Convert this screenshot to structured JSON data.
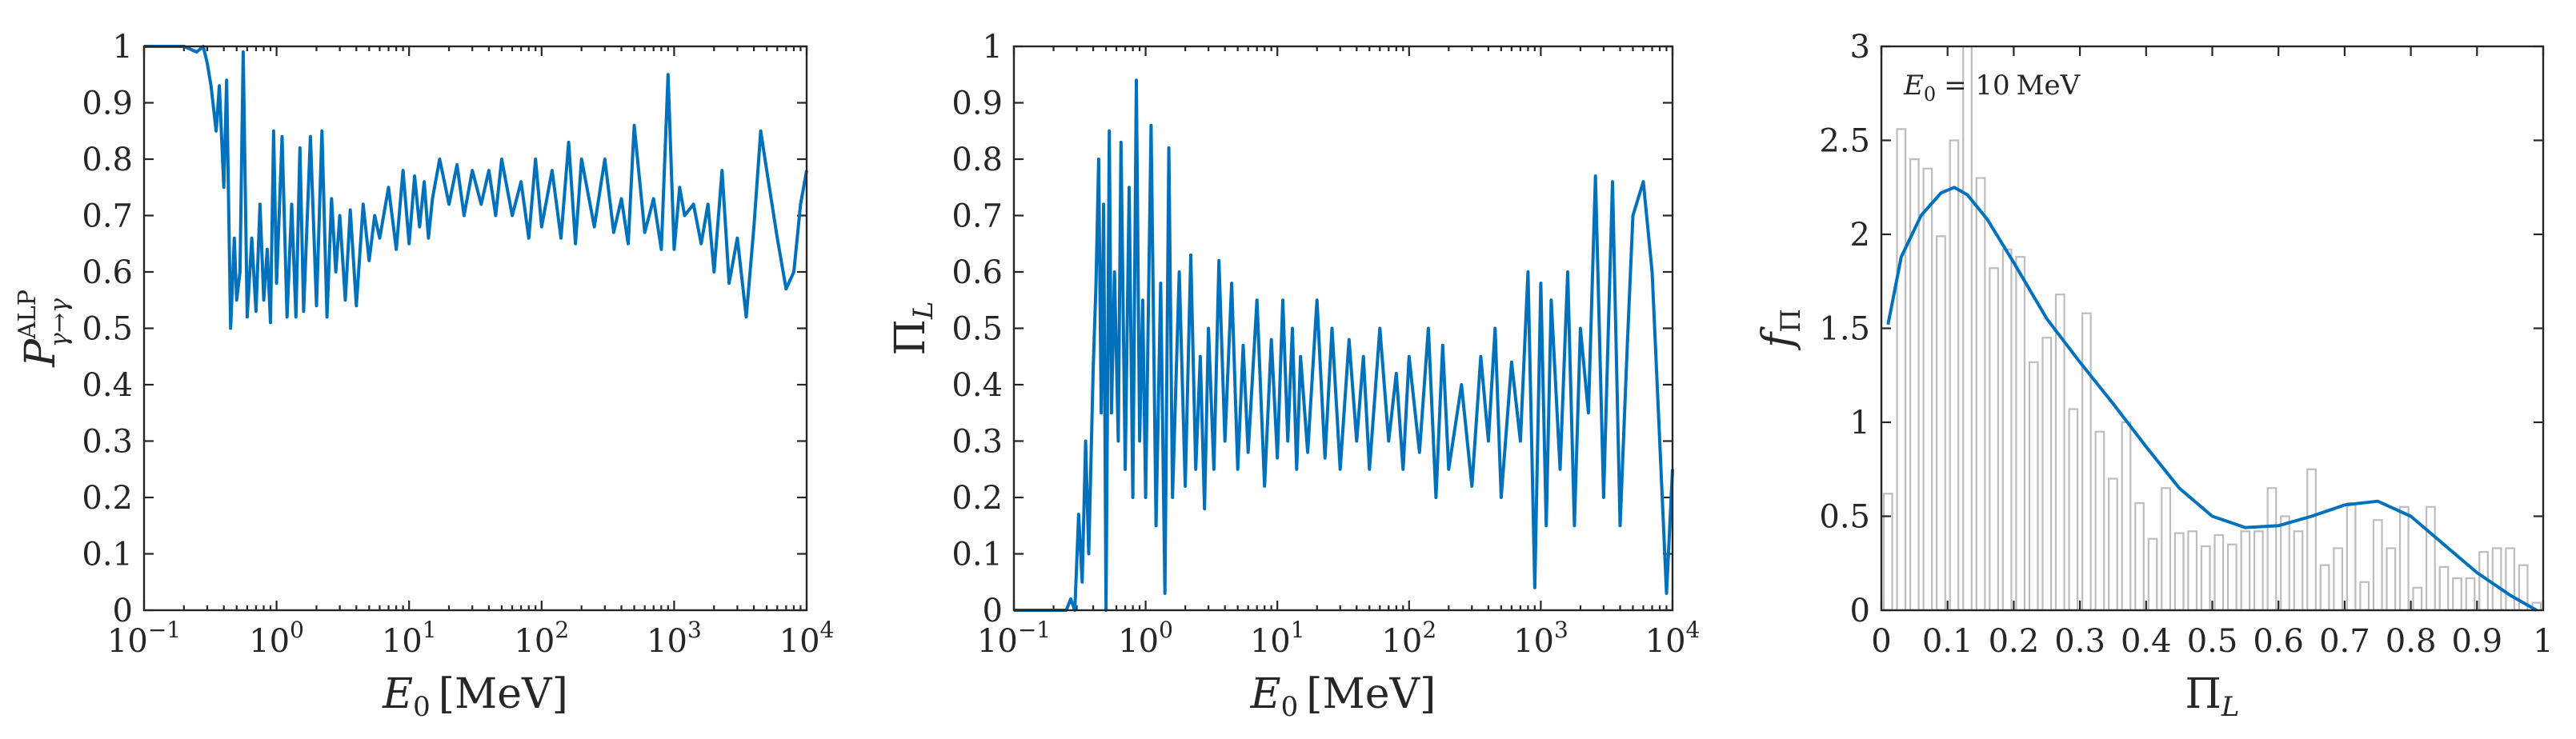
{
  "chart_data": [
    {
      "type": "line",
      "panel": "left",
      "xlabel_var": "E",
      "xlabel_sub": "0",
      "xlabel_unit": "[MeV]",
      "ylabel_main": "P",
      "ylabel_sup": "ALP",
      "ylabel_sub": "γ→γ",
      "xscale": "log",
      "xlim": [
        0.1,
        10000
      ],
      "ylim": [
        0,
        1
      ],
      "x_ticks": [
        0.1,
        1,
        10,
        100,
        1000,
        10000
      ],
      "x_tick_base": "10",
      "x_tick_exp": [
        "−1",
        "0",
        "1",
        "2",
        "3",
        "4"
      ],
      "y_ticks": [
        0,
        0.1,
        0.2,
        0.3,
        0.4,
        0.5,
        0.6,
        0.7,
        0.8,
        0.9,
        1
      ],
      "y_tick_labels": [
        "0",
        "0.1",
        "0.2",
        "0.3",
        "0.4",
        "0.5",
        "0.6",
        "0.7",
        "0.8",
        "0.9",
        "1"
      ],
      "series": [
        {
          "name": "P_ALP",
          "color": "#0072BD",
          "x": [
            0.1,
            0.15,
            0.2,
            0.25,
            0.28,
            0.3,
            0.32,
            0.35,
            0.37,
            0.4,
            0.42,
            0.45,
            0.48,
            0.5,
            0.53,
            0.56,
            0.6,
            0.65,
            0.7,
            0.75,
            0.8,
            0.85,
            0.9,
            0.95,
            1.0,
            1.1,
            1.2,
            1.3,
            1.4,
            1.5,
            1.6,
            1.8,
            2.0,
            2.2,
            2.4,
            2.6,
            2.8,
            3.0,
            3.3,
            3.6,
            4.0,
            4.5,
            5.0,
            5.5,
            6.0,
            7.0,
            8.0,
            9.0,
            10,
            11,
            12,
            13,
            14,
            15,
            17,
            20,
            23,
            26,
            30,
            35,
            40,
            45,
            50,
            60,
            70,
            80,
            90,
            100,
            120,
            140,
            160,
            180,
            200,
            250,
            300,
            350,
            400,
            450,
            500,
            600,
            700,
            800,
            900,
            1000,
            1100,
            1200,
            1400,
            1600,
            1800,
            2000,
            2300,
            2600,
            3000,
            3500,
            4000,
            4500,
            5000,
            6000,
            7000,
            8000,
            9000,
            10000
          ],
          "y": [
            1.0,
            1.0,
            1.0,
            0.99,
            1.0,
            0.97,
            0.93,
            0.85,
            0.93,
            0.75,
            0.94,
            0.5,
            0.66,
            0.55,
            0.6,
            0.99,
            0.52,
            0.66,
            0.53,
            0.72,
            0.55,
            0.64,
            0.51,
            0.85,
            0.58,
            0.84,
            0.52,
            0.72,
            0.52,
            0.82,
            0.53,
            0.84,
            0.54,
            0.85,
            0.52,
            0.73,
            0.6,
            0.7,
            0.55,
            0.71,
            0.54,
            0.72,
            0.62,
            0.7,
            0.66,
            0.75,
            0.64,
            0.78,
            0.65,
            0.77,
            0.68,
            0.76,
            0.66,
            0.73,
            0.8,
            0.72,
            0.79,
            0.7,
            0.78,
            0.72,
            0.78,
            0.7,
            0.8,
            0.7,
            0.76,
            0.66,
            0.8,
            0.68,
            0.78,
            0.66,
            0.83,
            0.65,
            0.8,
            0.68,
            0.8,
            0.67,
            0.73,
            0.65,
            0.86,
            0.67,
            0.73,
            0.64,
            0.95,
            0.64,
            0.75,
            0.7,
            0.72,
            0.65,
            0.72,
            0.6,
            0.78,
            0.58,
            0.66,
            0.52,
            0.68,
            0.85,
            0.78,
            0.66,
            0.57,
            0.6,
            0.72,
            0.78
          ]
        }
      ]
    },
    {
      "type": "line",
      "panel": "middle",
      "xlabel_var": "E",
      "xlabel_sub": "0",
      "xlabel_unit": "[MeV]",
      "ylabel_main": "Π",
      "ylabel_sub": "L",
      "xscale": "log",
      "xlim": [
        0.1,
        10000
      ],
      "ylim": [
        0,
        1
      ],
      "x_ticks": [
        0.1,
        1,
        10,
        100,
        1000,
        10000
      ],
      "x_tick_base": "10",
      "x_tick_exp": [
        "−1",
        "0",
        "1",
        "2",
        "3",
        "4"
      ],
      "y_ticks": [
        0,
        0.1,
        0.2,
        0.3,
        0.4,
        0.5,
        0.6,
        0.7,
        0.8,
        0.9,
        1
      ],
      "y_tick_labels": [
        "0",
        "0.1",
        "0.2",
        "0.3",
        "0.4",
        "0.5",
        "0.6",
        "0.7",
        "0.8",
        "0.9",
        "1"
      ],
      "series": [
        {
          "name": "Pi_L",
          "color": "#0072BD",
          "x": [
            0.1,
            0.15,
            0.2,
            0.25,
            0.27,
            0.29,
            0.31,
            0.33,
            0.35,
            0.37,
            0.4,
            0.42,
            0.44,
            0.46,
            0.48,
            0.5,
            0.53,
            0.55,
            0.58,
            0.62,
            0.65,
            0.7,
            0.75,
            0.8,
            0.85,
            0.9,
            0.95,
            1.0,
            1.1,
            1.2,
            1.3,
            1.4,
            1.5,
            1.6,
            1.8,
            2.0,
            2.2,
            2.4,
            2.6,
            2.8,
            3.0,
            3.3,
            3.6,
            4.0,
            4.5,
            5.0,
            5.5,
            6.0,
            7.0,
            8.0,
            9.0,
            10,
            11,
            12,
            13,
            14,
            15,
            17,
            20,
            23,
            26,
            30,
            35,
            40,
            45,
            50,
            60,
            70,
            80,
            90,
            100,
            120,
            140,
            160,
            180,
            200,
            250,
            300,
            350,
            400,
            450,
            500,
            600,
            700,
            800,
            900,
            1000,
            1100,
            1200,
            1400,
            1600,
            1800,
            2000,
            2300,
            2600,
            3000,
            3500,
            4000,
            4500,
            5000,
            6000,
            7000,
            8000,
            9000,
            10000
          ],
          "y": [
            0.0,
            0.0,
            0.0,
            0.0,
            0.02,
            0.0,
            0.17,
            0.05,
            0.3,
            0.1,
            0.43,
            0.58,
            0.8,
            0.35,
            0.72,
            0.0,
            0.85,
            0.35,
            0.6,
            0.3,
            0.83,
            0.25,
            0.75,
            0.2,
            0.94,
            0.3,
            0.55,
            0.2,
            0.86,
            0.15,
            0.58,
            0.03,
            0.82,
            0.2,
            0.6,
            0.22,
            0.63,
            0.25,
            0.45,
            0.18,
            0.5,
            0.25,
            0.62,
            0.3,
            0.58,
            0.25,
            0.47,
            0.28,
            0.55,
            0.22,
            0.48,
            0.27,
            0.55,
            0.3,
            0.5,
            0.25,
            0.45,
            0.28,
            0.55,
            0.27,
            0.5,
            0.25,
            0.48,
            0.3,
            0.45,
            0.25,
            0.5,
            0.3,
            0.42,
            0.25,
            0.45,
            0.28,
            0.5,
            0.2,
            0.47,
            0.25,
            0.4,
            0.22,
            0.45,
            0.3,
            0.5,
            0.2,
            0.44,
            0.3,
            0.6,
            0.04,
            0.58,
            0.15,
            0.55,
            0.25,
            0.6,
            0.15,
            0.5,
            0.35,
            0.77,
            0.2,
            0.76,
            0.15,
            0.45,
            0.7,
            0.76,
            0.6,
            0.3,
            0.03,
            0.25
          ]
        }
      ]
    },
    {
      "type": "bar",
      "panel": "right",
      "annotation_var": "E",
      "annotation_sub": "0",
      "annotation_value": "= 10",
      "annotation_unit": "MeV",
      "xlabel_main": "Π",
      "xlabel_sub": "L",
      "ylabel_main": "f",
      "ylabel_sub": "Π",
      "xlim": [
        0,
        1
      ],
      "ylim": [
        0,
        3
      ],
      "x_ticks": [
        0,
        0.1,
        0.2,
        0.3,
        0.4,
        0.5,
        0.6,
        0.7,
        0.8,
        0.9,
        1
      ],
      "x_tick_labels": [
        "0",
        "0.1",
        "0.2",
        "0.3",
        "0.4",
        "0.5",
        "0.6",
        "0.7",
        "0.8",
        "0.9",
        "1"
      ],
      "y_ticks": [
        0,
        0.5,
        1,
        1.5,
        2,
        2.5,
        3
      ],
      "y_tick_labels": [
        "0",
        "0.5",
        "1",
        "1.5",
        "2",
        "2.5",
        "3"
      ],
      "bin_width": 0.02,
      "bar_values": [
        0.62,
        2.56,
        2.4,
        2.35,
        1.99,
        2.5,
        3.0,
        2.3,
        1.82,
        1.92,
        1.88,
        1.32,
        1.45,
        1.68,
        1.07,
        1.58,
        0.95,
        0.7,
        1.0,
        0.57,
        0.38,
        0.65,
        0.41,
        0.42,
        0.34,
        0.4,
        0.35,
        0.42,
        0.42,
        0.65,
        0.5,
        0.42,
        0.75,
        0.24,
        0.33,
        0.57,
        0.15,
        0.48,
        0.33,
        0.55,
        0.12,
        0.55,
        0.23,
        0.17,
        0.17,
        0.31,
        0.33,
        0.33,
        0.24,
        0.04
      ],
      "series": [
        {
          "name": "kde",
          "color": "#0072BD",
          "x": [
            0.01,
            0.03,
            0.06,
            0.09,
            0.11,
            0.13,
            0.16,
            0.2,
            0.25,
            0.3,
            0.35,
            0.4,
            0.45,
            0.5,
            0.55,
            0.6,
            0.65,
            0.7,
            0.75,
            0.8,
            0.85,
            0.9,
            0.95,
            0.99
          ],
          "y": [
            1.52,
            1.88,
            2.1,
            2.22,
            2.25,
            2.21,
            2.08,
            1.85,
            1.55,
            1.32,
            1.1,
            0.87,
            0.65,
            0.5,
            0.44,
            0.45,
            0.5,
            0.56,
            0.58,
            0.5,
            0.35,
            0.2,
            0.08,
            0.0
          ]
        }
      ]
    }
  ]
}
